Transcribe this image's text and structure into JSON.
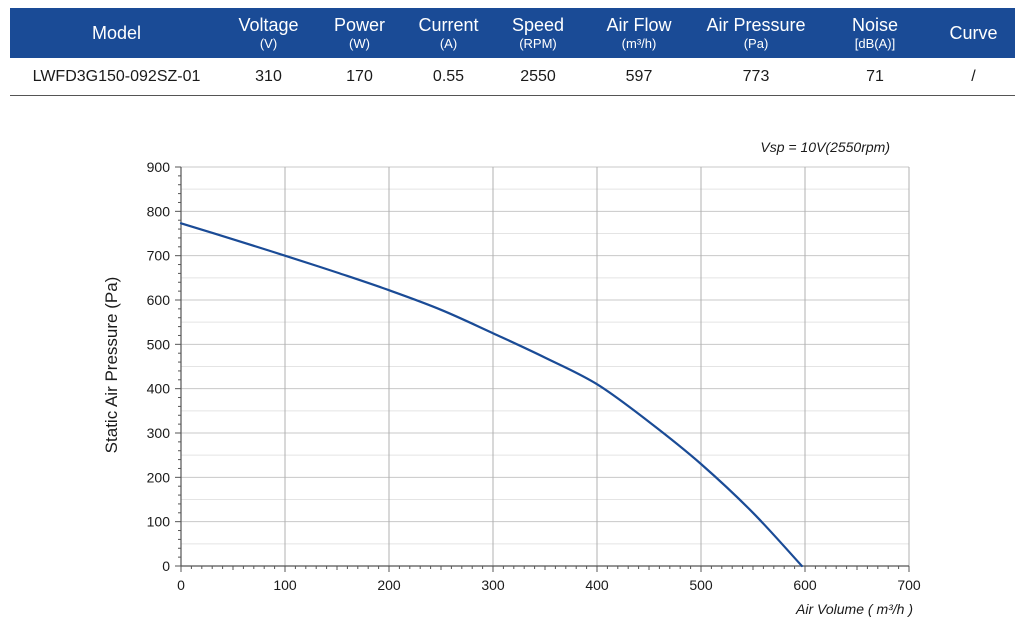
{
  "table": {
    "headers": [
      {
        "label": "Model",
        "unit": ""
      },
      {
        "label": "Voltage",
        "unit": "(V)"
      },
      {
        "label": "Power",
        "unit": "(W)"
      },
      {
        "label": "Current",
        "unit": "(A)"
      },
      {
        "label": "Speed",
        "unit": "(RPM)"
      },
      {
        "label": "Air Flow",
        "unit": "(m³/h)"
      },
      {
        "label": "Air Pressure",
        "unit": "(Pa)"
      },
      {
        "label": "Noise",
        "unit": "[dB(A)]"
      },
      {
        "label": "Curve",
        "unit": ""
      }
    ],
    "row": [
      "LWFD3G150-092SZ-01",
      "310",
      "170",
      "0.55",
      "2550",
      "597",
      "773",
      "71",
      "/"
    ]
  },
  "colors": {
    "header_bg": "#1a4b96",
    "curve": "#1a4b96"
  },
  "chart_data": {
    "type": "line",
    "title": "",
    "annotation": "Vsp = 10V(2550rpm)",
    "xlabel": "Air Volume ( m³/h )",
    "ylabel": "Static Air Pressure  (Pa)",
    "xlim": [
      0,
      700
    ],
    "ylim": [
      0,
      900
    ],
    "xticks": [
      0,
      100,
      200,
      300,
      400,
      500,
      600,
      700
    ],
    "yticks": [
      0,
      100,
      200,
      300,
      400,
      500,
      600,
      700,
      800,
      900
    ],
    "grid": {
      "vertical": true,
      "horizontal": true
    },
    "series": [
      {
        "x": [
          0,
          50,
          100,
          150,
          200,
          250,
          300,
          350,
          400,
          450,
          500,
          550,
          597
        ],
        "y": [
          773,
          737,
          700,
          662,
          622,
          578,
          525,
          470,
          410,
          325,
          230,
          120,
          0
        ]
      }
    ]
  }
}
